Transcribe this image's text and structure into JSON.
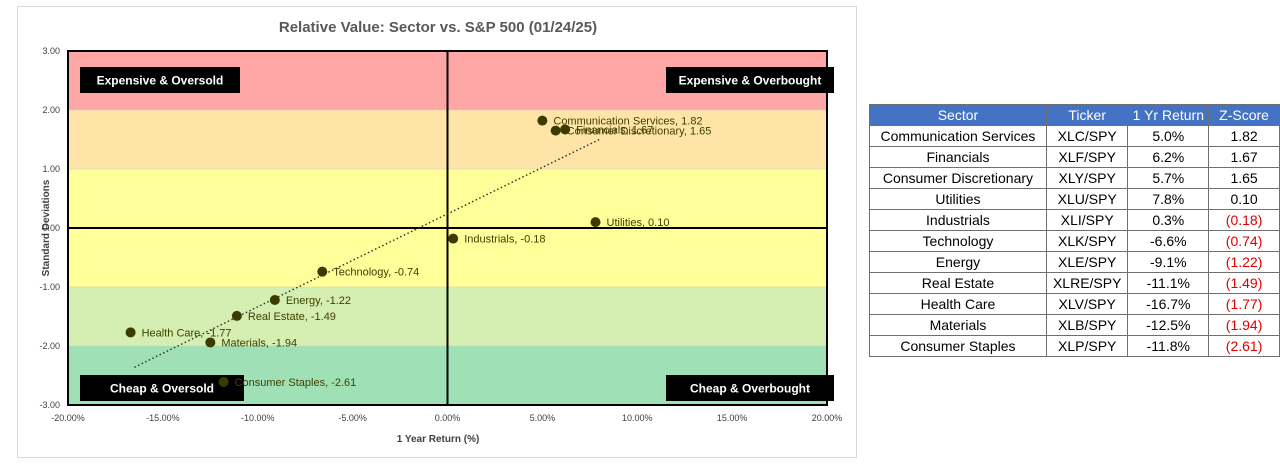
{
  "chart_data": {
    "type": "scatter",
    "title": "Relative Value: Sector vs. S&P 500 (01/24/25)",
    "xlabel": "1 Year Return (%)",
    "ylabel": "Standard Deviations",
    "xlim": [
      -20,
      20
    ],
    "ylim": [
      -3,
      3
    ],
    "x_ticks": [
      "-20.00%",
      "-15.00%",
      "-10.00%",
      "-5.00%",
      "0.00%",
      "5.00%",
      "10.00%",
      "15.00%",
      "20.00%"
    ],
    "y_ticks": [
      "3.00",
      "2.00",
      "1.00",
      "0.00",
      "-1.00",
      "-2.00",
      "-3.00"
    ],
    "points": [
      {
        "label": "Communication Services, 1.82",
        "x": 5.0,
        "y": 1.82
      },
      {
        "label": "Financials, 1.67",
        "x": 6.2,
        "y": 1.67
      },
      {
        "label": "Consumer Discretionary, 1.65",
        "x": 5.7,
        "y": 1.65
      },
      {
        "label": "Utilities, 0.10",
        "x": 7.8,
        "y": 0.1
      },
      {
        "label": "Industrials, -0.18",
        "x": 0.3,
        "y": -0.18
      },
      {
        "label": "Technology, -0.74",
        "x": -6.6,
        "y": -0.74
      },
      {
        "label": "Energy, -1.22",
        "x": -9.1,
        "y": -1.22
      },
      {
        "label": "Real Estate, -1.49",
        "x": -11.1,
        "y": -1.49
      },
      {
        "label": "Health Care, -1.77",
        "x": -16.7,
        "y": -1.77
      },
      {
        "label": "Materials, -1.94",
        "x": -12.5,
        "y": -1.94
      },
      {
        "label": "Consumer Staples, -2.61",
        "x": -11.8,
        "y": -2.61
      }
    ],
    "bands": [
      {
        "from": 2,
        "to": 3,
        "color": "#ffa7a7"
      },
      {
        "from": 1,
        "to": 2,
        "color": "#ffe4a8"
      },
      {
        "from": 0,
        "to": 1,
        "color": "#ffff99"
      },
      {
        "from": -1,
        "to": 0,
        "color": "#ffff99"
      },
      {
        "from": -2,
        "to": -1,
        "color": "#d5eeb2"
      },
      {
        "from": -3,
        "to": -2,
        "color": "#9fe0b6"
      }
    ],
    "quadrant_labels": {
      "top_left": "Expensive & Oversold",
      "top_right": "Expensive & Overbought",
      "bottom_left": "Cheap & Oversold",
      "bottom_right": "Cheap & Overbought"
    },
    "trendline": {
      "style": "dotted",
      "from": [
        -16.5,
        -2.36
      ],
      "to": [
        8.0,
        1.5
      ]
    },
    "marker_color": "#3d3a00",
    "grid": false
  },
  "table": {
    "headers": [
      "Sector",
      "Ticker",
      "1 Yr Return",
      "Z-Score"
    ],
    "rows": [
      {
        "sector": "Communication Services",
        "ticker": "XLC/SPY",
        "ret": "5.0%",
        "z": "1.82",
        "neg": false
      },
      {
        "sector": "Financials",
        "ticker": "XLF/SPY",
        "ret": "6.2%",
        "z": "1.67",
        "neg": false
      },
      {
        "sector": "Consumer Discretionary",
        "ticker": "XLY/SPY",
        "ret": "5.7%",
        "z": "1.65",
        "neg": false
      },
      {
        "sector": "Utilities",
        "ticker": "XLU/SPY",
        "ret": "7.8%",
        "z": "0.10",
        "neg": false
      },
      {
        "sector": "Industrials",
        "ticker": "XLI/SPY",
        "ret": "0.3%",
        "z": "(0.18)",
        "neg": true
      },
      {
        "sector": "Technology",
        "ticker": "XLK/SPY",
        "ret": "-6.6%",
        "z": "(0.74)",
        "neg": true
      },
      {
        "sector": "Energy",
        "ticker": "XLE/SPY",
        "ret": "-9.1%",
        "z": "(1.22)",
        "neg": true
      },
      {
        "sector": "Real Estate",
        "ticker": "XLRE/SPY",
        "ret": "-11.1%",
        "z": "(1.49)",
        "neg": true
      },
      {
        "sector": "Health Care",
        "ticker": "XLV/SPY",
        "ret": "-16.7%",
        "z": "(1.77)",
        "neg": true
      },
      {
        "sector": "Materials",
        "ticker": "XLB/SPY",
        "ret": "-12.5%",
        "z": "(1.94)",
        "neg": true
      },
      {
        "sector": "Consumer Staples",
        "ticker": "XLP/SPY",
        "ret": "-11.8%",
        "z": "(2.61)",
        "neg": true
      }
    ],
    "header_color": "#4472c4",
    "negative_color": "#e00000"
  }
}
